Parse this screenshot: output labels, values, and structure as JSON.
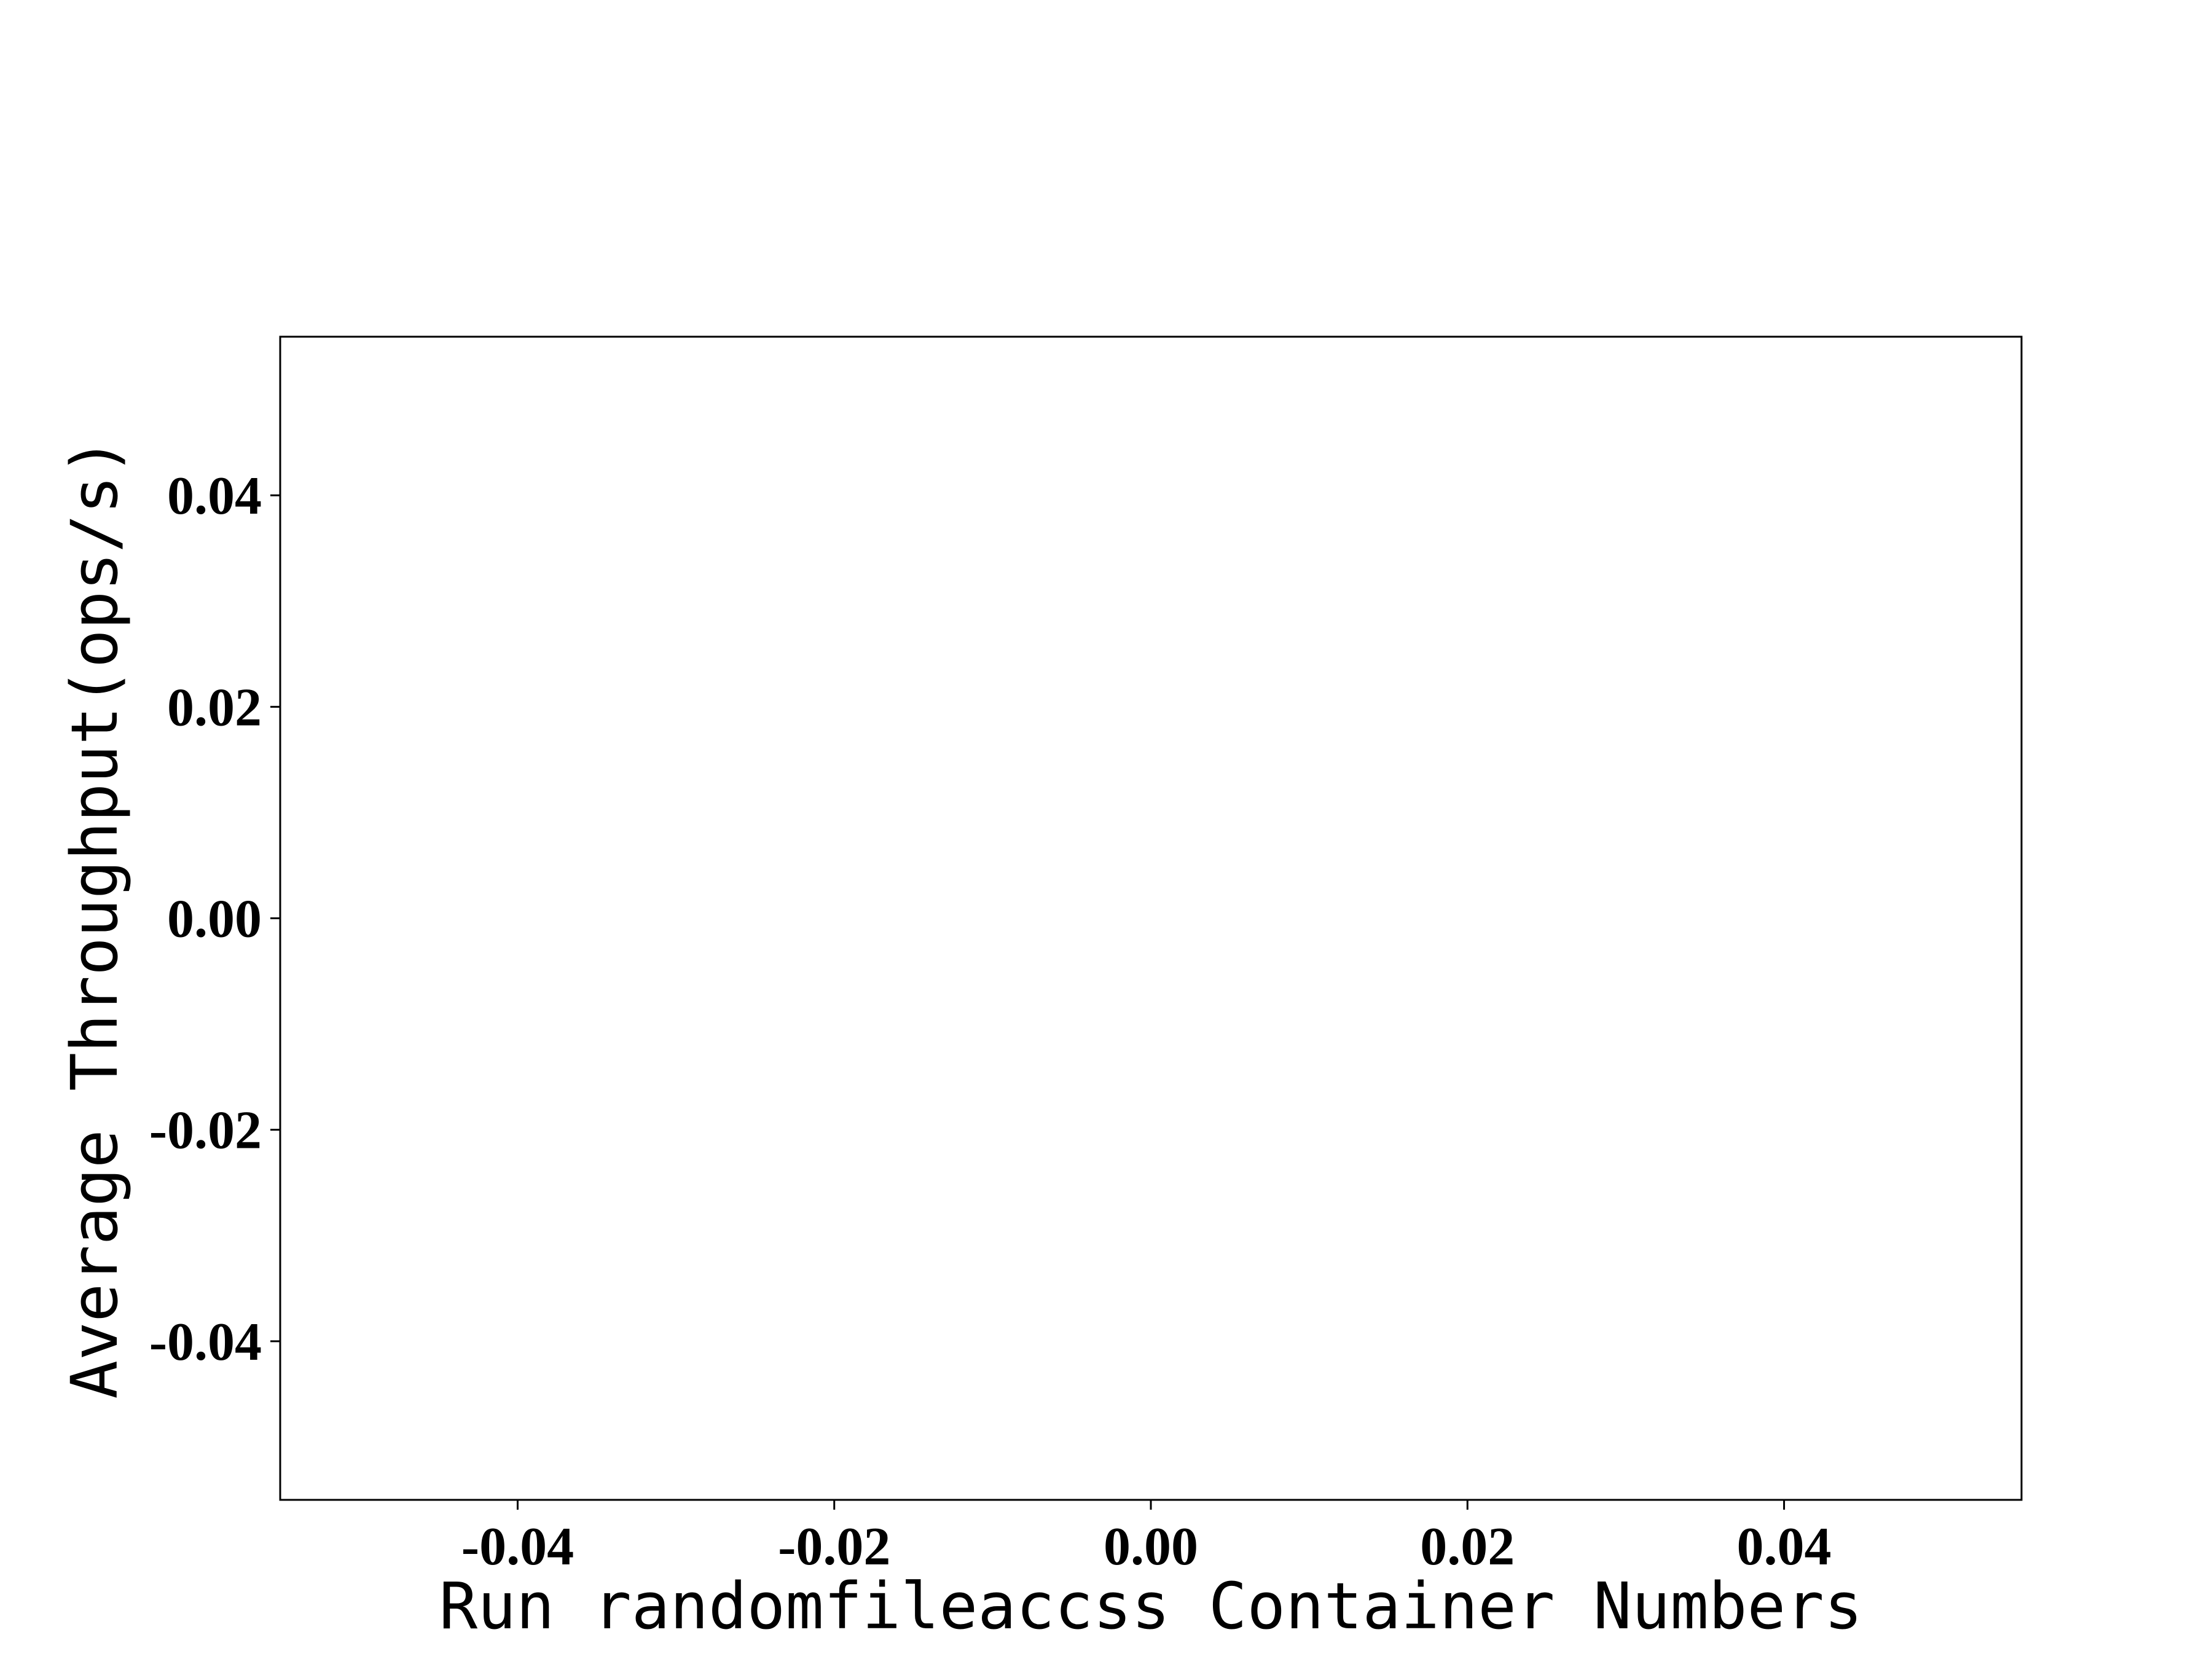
{
  "chart_data": {
    "type": "line",
    "title": "",
    "xlabel": "Run randomfileaccss Container Numbers",
    "ylabel": "Average Throughput(ops/s)",
    "x": [],
    "series": [],
    "xlim": [
      -0.055,
      0.055
    ],
    "ylim": [
      -0.055,
      0.055
    ],
    "xticks": [
      -0.04,
      -0.02,
      0.0,
      0.02,
      0.04
    ],
    "xtick_labels": [
      "-0.04",
      "-0.02",
      "0.00",
      "0.02",
      "0.04"
    ],
    "yticks": [
      -0.04,
      -0.02,
      0.0,
      0.02,
      0.04
    ],
    "ytick_labels": [
      "-0.04",
      "-0.02",
      "0.00",
      "0.02",
      "0.04"
    ],
    "grid": false,
    "legend": "none",
    "colors": {
      "axis": "#000000",
      "background": "#ffffff"
    }
  }
}
